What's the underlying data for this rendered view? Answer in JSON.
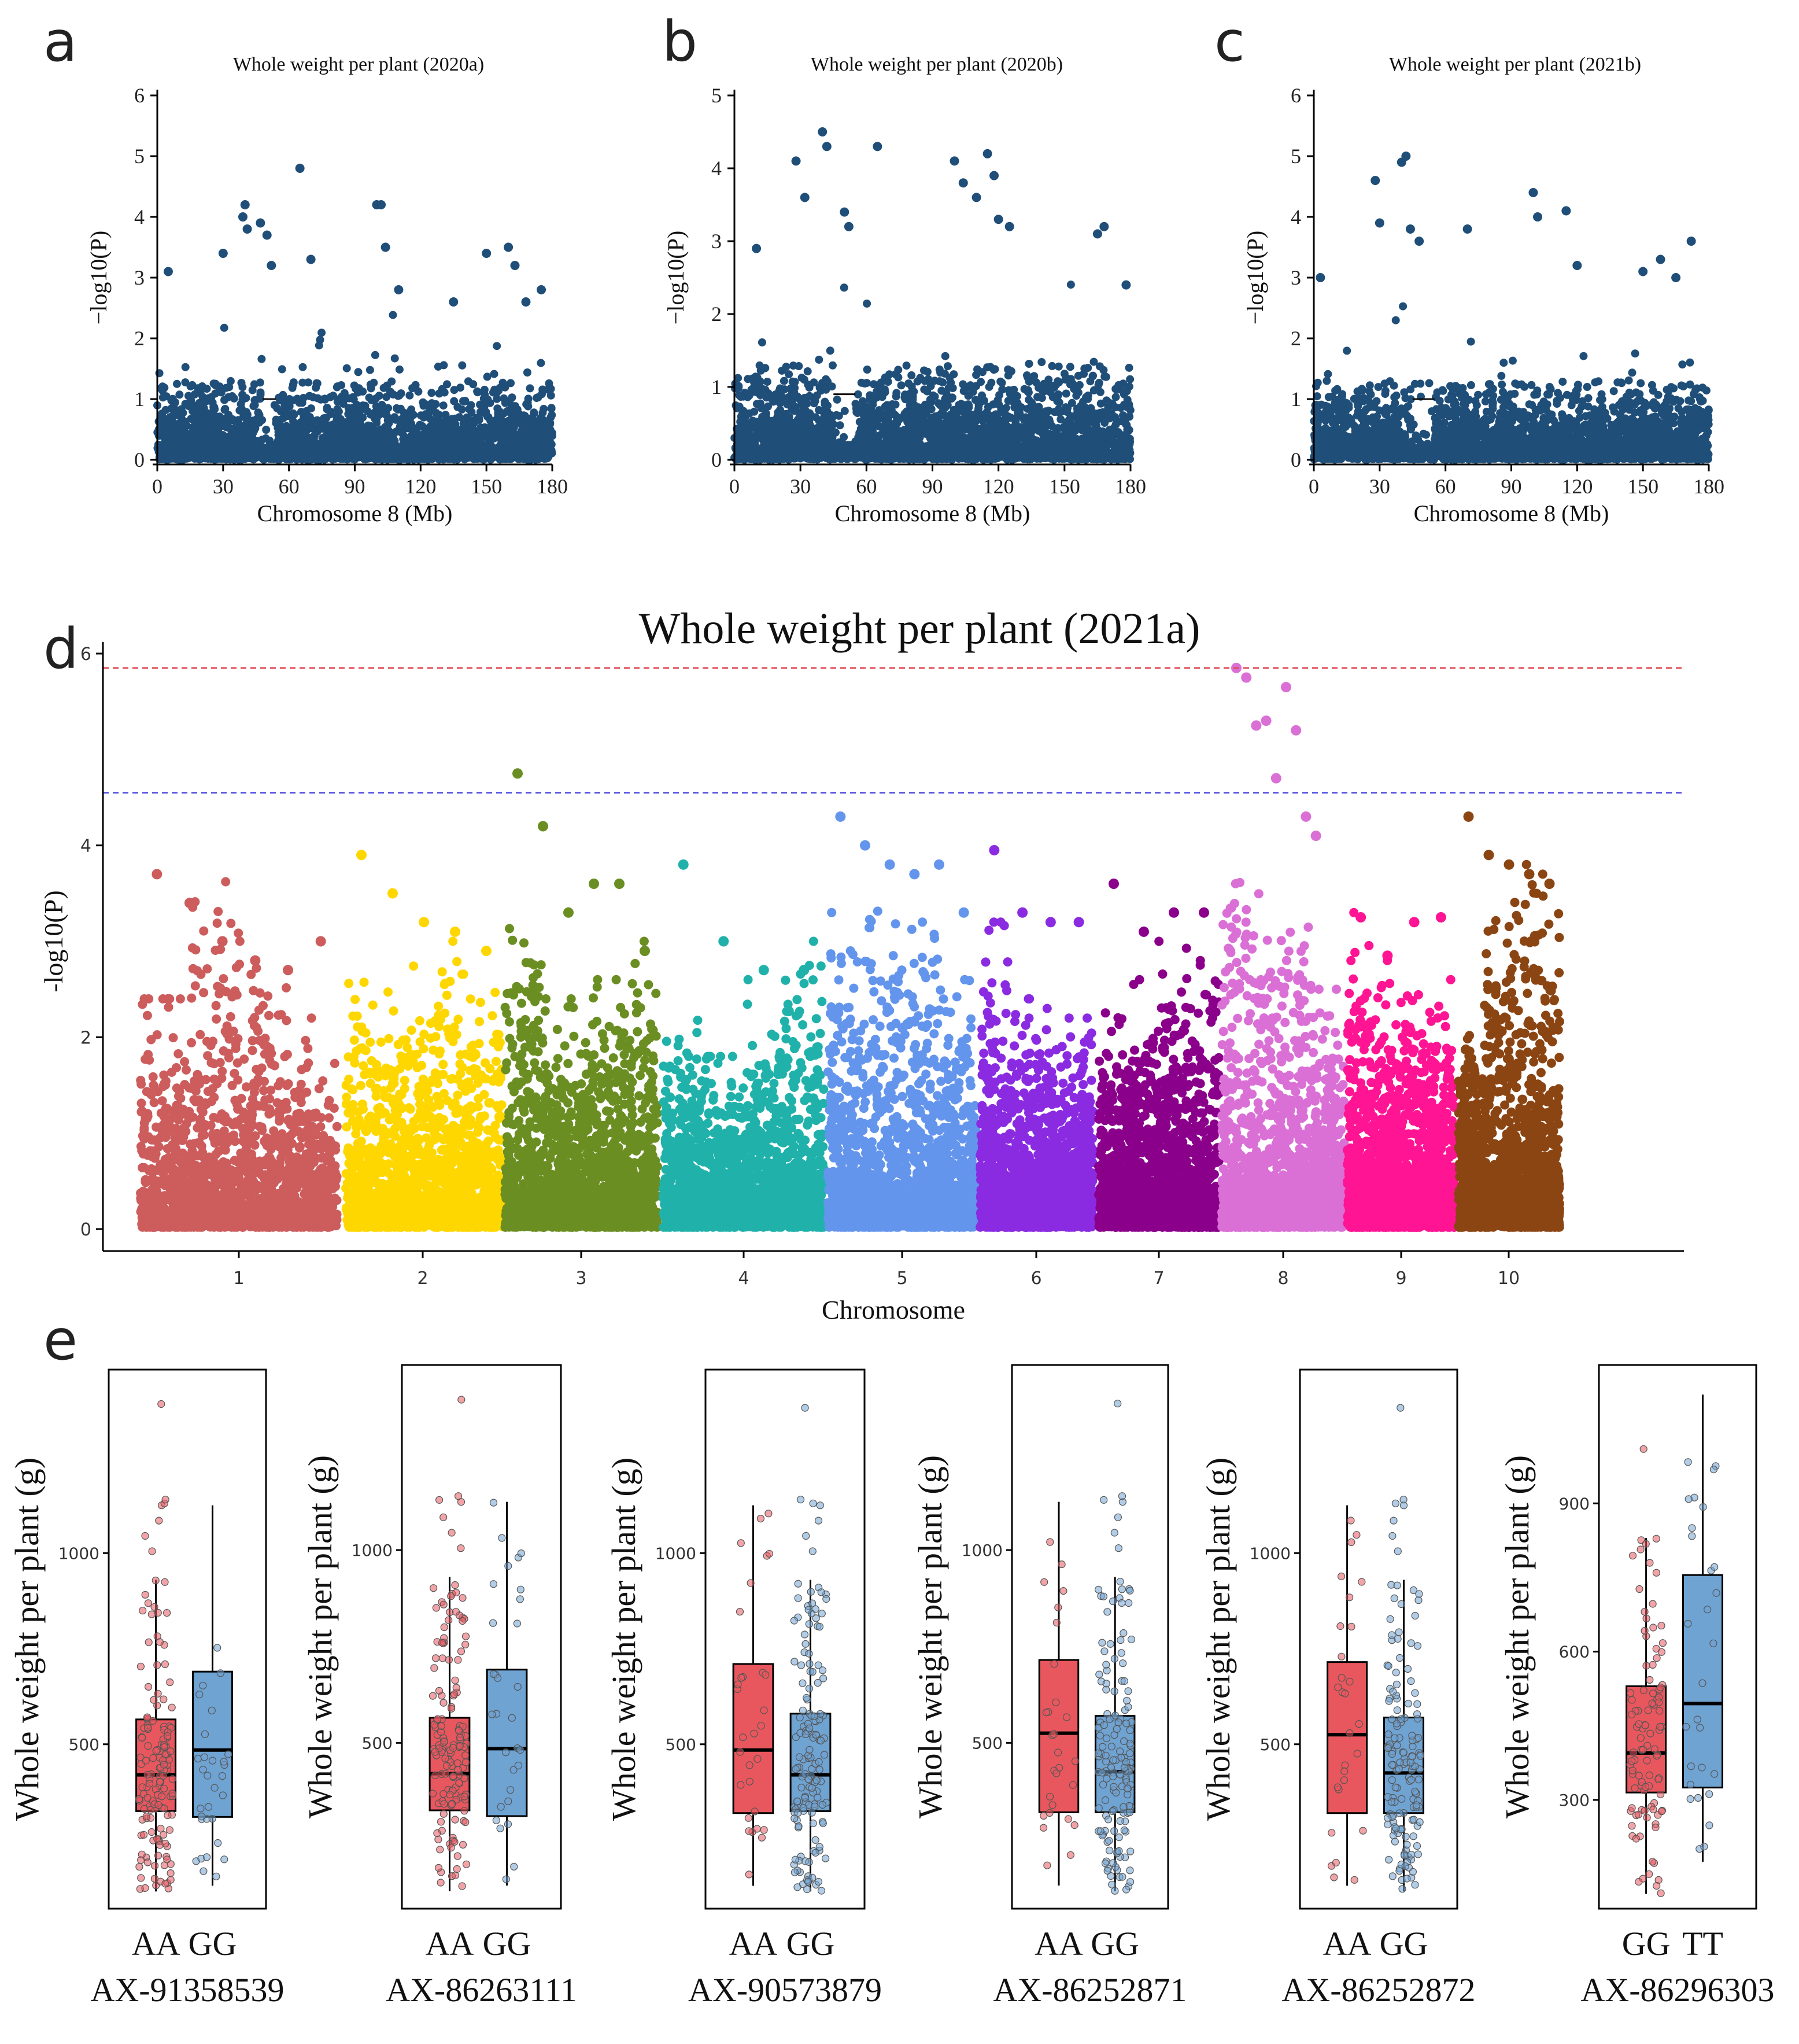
{
  "chart_data": [
    {
      "panel": "a",
      "type": "scatter",
      "title": "Whole weight per plant (2020a)",
      "xlabel": "Chromosome 8 (Mb)",
      "ylabel": "−log10(P)",
      "xlim": [
        0,
        180
      ],
      "ylim": [
        0,
        6
      ],
      "xticks": [
        0,
        30,
        60,
        90,
        120,
        150,
        180
      ],
      "yticks": [
        0,
        1,
        2,
        3,
        4,
        5,
        6
      ],
      "color": "#1f4e79",
      "peaks": [
        [
          5,
          3.1
        ],
        [
          30,
          3.4
        ],
        [
          39,
          4.0
        ],
        [
          40,
          4.2
        ],
        [
          41,
          3.8
        ],
        [
          47,
          3.9
        ],
        [
          50,
          3.7
        ],
        [
          52,
          3.2
        ],
        [
          65,
          4.8
        ],
        [
          70,
          3.3
        ],
        [
          100,
          4.2
        ],
        [
          102,
          4.2
        ],
        [
          104,
          3.5
        ],
        [
          110,
          2.8
        ],
        [
          135,
          2.6
        ],
        [
          150,
          3.4
        ],
        [
          160,
          3.5
        ],
        [
          163,
          3.2
        ],
        [
          168,
          2.6
        ],
        [
          175,
          2.8
        ]
      ],
      "null_segment": [
        48,
        54,
        1.0
      ]
    },
    {
      "panel": "b",
      "type": "scatter",
      "title": "Whole weight per plant (2020b)",
      "xlabel": "Chromosome 8 (Mb)",
      "ylabel": "−log10(P)",
      "xlim": [
        0,
        180
      ],
      "ylim": [
        0,
        5
      ],
      "xticks": [
        0,
        30,
        60,
        90,
        120,
        150,
        180
      ],
      "yticks": [
        0,
        1,
        2,
        3,
        4,
        5
      ],
      "color": "#1f4e79",
      "peaks": [
        [
          10,
          2.9
        ],
        [
          28,
          4.1
        ],
        [
          32,
          3.6
        ],
        [
          40,
          4.5
        ],
        [
          42,
          4.3
        ],
        [
          50,
          3.4
        ],
        [
          52,
          3.2
        ],
        [
          65,
          4.3
        ],
        [
          100,
          4.1
        ],
        [
          104,
          3.8
        ],
        [
          110,
          3.6
        ],
        [
          115,
          4.2
        ],
        [
          118,
          3.9
        ],
        [
          120,
          3.3
        ],
        [
          125,
          3.2
        ],
        [
          165,
          3.1
        ],
        [
          168,
          3.2
        ],
        [
          178,
          2.4
        ]
      ],
      "null_segment": [
        45,
        55,
        0.9
      ]
    },
    {
      "panel": "c",
      "type": "scatter",
      "title": "Whole weight per plant (2021b)",
      "xlabel": "Chromosome 8 (Mb)",
      "ylabel": "−log10(P)",
      "xlim": [
        0,
        180
      ],
      "ylim": [
        0,
        6
      ],
      "xticks": [
        0,
        30,
        60,
        90,
        120,
        150,
        180
      ],
      "yticks": [
        0,
        1,
        2,
        3,
        4,
        5,
        6
      ],
      "color": "#1f4e79",
      "peaks": [
        [
          3,
          3.0
        ],
        [
          28,
          4.6
        ],
        [
          30,
          3.9
        ],
        [
          40,
          4.9
        ],
        [
          42,
          5.0
        ],
        [
          44,
          3.8
        ],
        [
          48,
          3.6
        ],
        [
          70,
          3.8
        ],
        [
          100,
          4.4
        ],
        [
          102,
          4.0
        ],
        [
          115,
          4.1
        ],
        [
          120,
          3.2
        ],
        [
          150,
          3.1
        ],
        [
          158,
          3.3
        ],
        [
          165,
          3.0
        ],
        [
          172,
          3.6
        ]
      ],
      "null_segment": [
        45,
        55,
        1.0
      ]
    },
    {
      "panel": "d",
      "type": "scatter",
      "title": "Whole weight per plant (2021a)",
      "xlabel": "Chromosome",
      "ylabel": "-log10(P)",
      "ylim": [
        0,
        6
      ],
      "yticks": [
        0,
        2,
        4,
        6
      ],
      "threshold_lines": [
        {
          "value": 5.85,
          "color": "#e0505a"
        },
        {
          "value": 4.55,
          "color": "#5a5ae0"
        }
      ],
      "chromosomes": [
        {
          "label": "1",
          "color": "#cd5c5c",
          "maxv": [
            2.4,
            3.7,
            3.0,
            2.2
          ],
          "peaks": [
            3.7,
            3.4,
            3.0,
            2.8,
            2.7,
            3.0
          ]
        },
        {
          "label": "2",
          "color": "#ffd700",
          "maxv": [
            3.1,
            2.8,
            3.0,
            2.7
          ],
          "peaks": [
            3.9,
            3.5,
            3.2,
            3.1,
            2.9
          ]
        },
        {
          "label": "3",
          "color": "#6b8e23",
          "maxv": [
            3.5,
            2.4,
            2.6,
            3.0
          ],
          "peaks": [
            4.75,
            4.2,
            3.3,
            3.6,
            3.6,
            2.9
          ]
        },
        {
          "label": "4",
          "color": "#20b2aa",
          "maxv": [
            2.3,
            1.8,
            2.6,
            3.1
          ],
          "peaks": [
            3.8,
            3.0,
            2.7,
            2.7
          ]
        },
        {
          "label": "5",
          "color": "#6495ed",
          "maxv": [
            3.3,
            3.6,
            3.2,
            2.6
          ],
          "peaks": [
            4.3,
            4.0,
            3.8,
            3.7,
            3.8,
            3.3
          ]
        },
        {
          "label": "6",
          "color": "#8a2be2",
          "maxv": [
            3.2,
            2.4,
            2.3,
            2.2
          ],
          "peaks": [
            3.95,
            3.3,
            3.2,
            3.2
          ]
        },
        {
          "label": "7",
          "color": "#8b008b",
          "maxv": [
            2.6,
            2.6,
            3.0,
            2.8
          ],
          "peaks": [
            3.6,
            3.1,
            3.3,
            3.3
          ]
        },
        {
          "label": "8",
          "color": "#da70d6",
          "maxv": [
            4.2,
            3.5,
            3.6,
            2.5
          ],
          "peaks": [
            5.85,
            5.75,
            5.25,
            5.3,
            4.7,
            5.65,
            5.2,
            4.3,
            4.1
          ]
        },
        {
          "label": "9",
          "color": "#ff1493",
          "maxv": [
            3.3,
            2.8,
            2.7,
            2.6
          ],
          "peaks": [
            3.25,
            2.85,
            3.2,
            3.25
          ]
        },
        {
          "label": "10",
          "color": "#8b4513",
          "maxv": [
            2.5,
            3.3,
            3.8,
            3.7
          ],
          "peaks": [
            4.3,
            3.9,
            3.8,
            3.7,
            3.6
          ]
        }
      ]
    },
    {
      "panel": "e",
      "type": "box",
      "ylabel": "Whole weight per plant (g)",
      "plots": [
        {
          "marker": "AX-91358539",
          "ylim": [
            70,
            1480
          ],
          "yticks": [
            500,
            1000
          ],
          "groups": [
            {
              "label": "AA",
              "color": "#e8575e",
              "min": 115,
              "q1": 325,
              "median": 420,
              "q3": 565,
              "max": 930,
              "n": 140,
              "outliers": [
                1005,
                1045,
                1085,
                1125,
                1130,
                1140,
                1390
              ]
            },
            {
              "label": "GG",
              "color": "#6fa3d2",
              "min": 130,
              "q1": 310,
              "median": 485,
              "q3": 690,
              "max": 1125,
              "n": 30,
              "outliers": []
            }
          ]
        },
        {
          "marker": "AX-86263111",
          "ylim": [
            70,
            1480
          ],
          "yticks": [
            500,
            1000
          ],
          "groups": [
            {
              "label": "AA",
              "color": "#e8575e",
              "min": 115,
              "q1": 325,
              "median": 420,
              "q3": 565,
              "max": 930,
              "n": 140,
              "outliers": [
                1005,
                1045,
                1085,
                1125,
                1130,
                1140,
                1390
              ]
            },
            {
              "label": "GG",
              "color": "#6fa3d2",
              "min": 130,
              "q1": 310,
              "median": 485,
              "q3": 690,
              "max": 1125,
              "n": 30,
              "outliers": []
            }
          ]
        },
        {
          "marker": "AX-90573879",
          "ylim": [
            70,
            1480
          ],
          "yticks": [
            500,
            1000
          ],
          "groups": [
            {
              "label": "AA",
              "color": "#e8575e",
              "min": 130,
              "q1": 320,
              "median": 485,
              "q3": 710,
              "max": 1125,
              "n": 30,
              "outliers": []
            },
            {
              "label": "GG",
              "color": "#6fa3d2",
              "min": 115,
              "q1": 325,
              "median": 420,
              "q3": 580,
              "max": 930,
              "n": 140,
              "outliers": [
                1005,
                1045,
                1085,
                1125,
                1130,
                1140,
                1380
              ]
            }
          ]
        },
        {
          "marker": "AX-86252871",
          "ylim": [
            70,
            1480
          ],
          "yticks": [
            500,
            1000
          ],
          "groups": [
            {
              "label": "AA",
              "color": "#e8575e",
              "min": 130,
              "q1": 320,
              "median": 525,
              "q3": 715,
              "max": 1125,
              "n": 28,
              "outliers": []
            },
            {
              "label": "GG",
              "color": "#6fa3d2",
              "min": 115,
              "q1": 320,
              "median": 425,
              "q3": 570,
              "max": 930,
              "n": 142,
              "outliers": [
                1005,
                1045,
                1085,
                1125,
                1130,
                1140,
                1380
              ]
            }
          ]
        },
        {
          "marker": "AX-86252872",
          "ylim": [
            70,
            1480
          ],
          "yticks": [
            500,
            1000
          ],
          "groups": [
            {
              "label": "AA",
              "color": "#e8575e",
              "min": 130,
              "q1": 320,
              "median": 525,
              "q3": 715,
              "max": 1125,
              "n": 28,
              "outliers": []
            },
            {
              "label": "GG",
              "color": "#6fa3d2",
              "min": 115,
              "q1": 320,
              "median": 425,
              "q3": 570,
              "max": 930,
              "n": 142,
              "outliers": [
                1005,
                1045,
                1085,
                1125,
                1130,
                1140,
                1380
              ]
            }
          ]
        },
        {
          "marker": "AX-86296303",
          "ylim": [
            80,
            1180
          ],
          "yticks": [
            300,
            600,
            900
          ],
          "groups": [
            {
              "label": "GG",
              "color": "#e8575e",
              "min": 110,
              "q1": 315,
              "median": 395,
              "q3": 530,
              "max": 830,
              "n": 100,
              "outliers": [
                1010
              ]
            },
            {
              "label": "TT",
              "color": "#6fa3d2",
              "min": 175,
              "q1": 325,
              "median": 495,
              "q3": 755,
              "max": 1120,
              "n": 28,
              "outliers": []
            }
          ]
        }
      ]
    }
  ]
}
